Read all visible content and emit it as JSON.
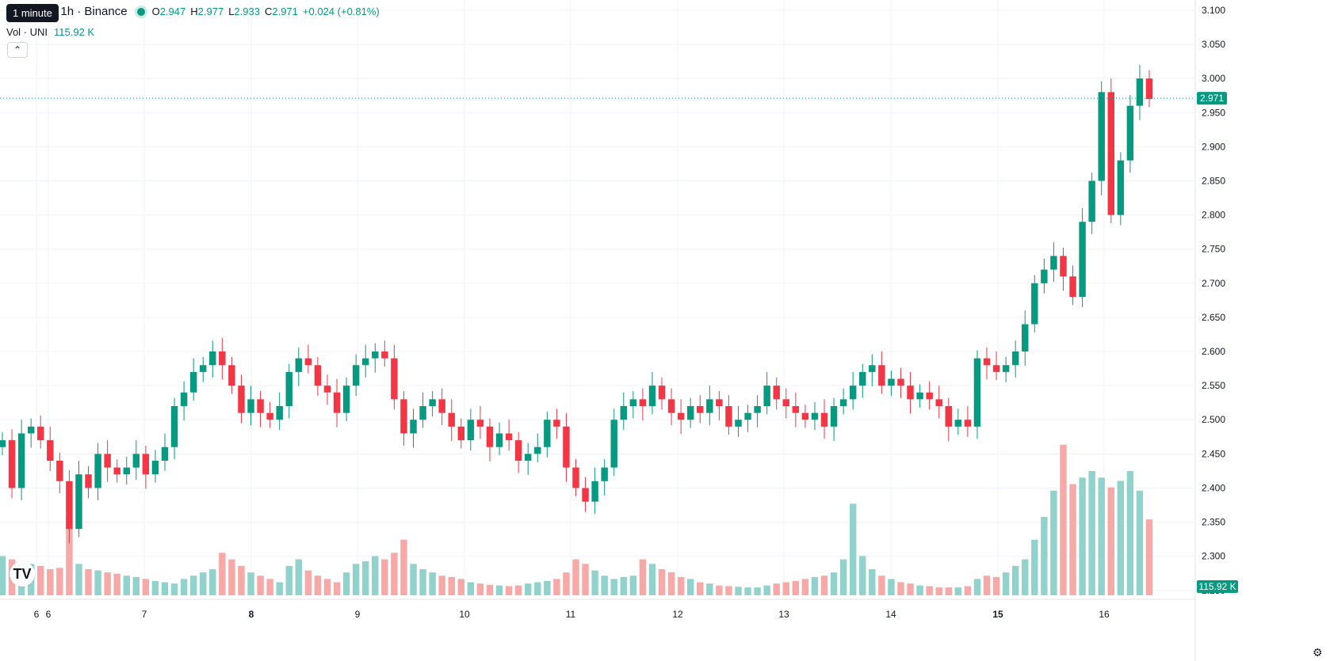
{
  "header": {
    "symbol": "etherUS · 1h · Binance",
    "tooltip": "1 minute",
    "open_label": "O",
    "open": "2.947",
    "high_label": "H",
    "high": "2.977",
    "low_label": "L",
    "low": "2.933",
    "close_label": "C",
    "close": "2.971",
    "change": "+0.024 (+0.81%)"
  },
  "volume_legend": {
    "label": "Vol · UNI",
    "value": "115.92 K"
  },
  "price_badge": "2.971",
  "volume_badge": "115.92 K",
  "logo_text": "TV",
  "icons": {
    "settings": "settings-gear-icon",
    "collapse": "chevron-up-icon",
    "logo": "tradingview-logo-icon"
  },
  "colors": {
    "up": "#089981",
    "down": "#f23645",
    "up_vol": "#92d2cc",
    "down_vol": "#f7a9a7",
    "grid": "#f0f3fa"
  },
  "chart_data": {
    "type": "candlestick",
    "timeframe": "1h",
    "price_axis": [
      "3.100",
      "3.050",
      "3.000",
      "2.950",
      "2.900",
      "2.850",
      "2.800",
      "2.750",
      "2.700",
      "2.650",
      "2.600",
      "2.550",
      "2.500",
      "2.450",
      "2.400",
      "2.350",
      "2.300",
      "2.250"
    ],
    "ylim": [
      2.237,
      3.115
    ],
    "x_labels": [
      "6",
      "6",
      "7",
      "8",
      "9",
      "10",
      "11",
      "12",
      "13",
      "14",
      "15",
      "16"
    ],
    "bold_x_labels": [
      "8",
      "15"
    ],
    "last_price": 2.971,
    "closes": [
      2.47,
      2.4,
      2.48,
      2.49,
      2.47,
      2.44,
      2.41,
      2.34,
      2.42,
      2.4,
      2.45,
      2.43,
      2.42,
      2.43,
      2.45,
      2.42,
      2.44,
      2.46,
      2.52,
      2.54,
      2.57,
      2.58,
      2.6,
      2.58,
      2.55,
      2.51,
      2.53,
      2.51,
      2.5,
      2.52,
      2.57,
      2.59,
      2.58,
      2.55,
      2.54,
      2.51,
      2.55,
      2.58,
      2.59,
      2.6,
      2.59,
      2.53,
      2.48,
      2.5,
      2.52,
      2.53,
      2.51,
      2.49,
      2.47,
      2.5,
      2.49,
      2.46,
      2.48,
      2.47,
      2.44,
      2.45,
      2.46,
      2.5,
      2.49,
      2.43,
      2.4,
      2.38,
      2.41,
      2.43,
      2.5,
      2.52,
      2.53,
      2.52,
      2.55,
      2.53,
      2.51,
      2.5,
      2.52,
      2.51,
      2.53,
      2.52,
      2.49,
      2.5,
      2.51,
      2.52,
      2.55,
      2.53,
      2.52,
      2.51,
      2.5,
      2.51,
      2.49,
      2.52,
      2.53,
      2.55,
      2.57,
      2.58,
      2.55,
      2.56,
      2.55,
      2.53,
      2.54,
      2.53,
      2.52,
      2.49,
      2.5,
      2.49,
      2.59,
      2.58,
      2.57,
      2.58,
      2.6,
      2.64,
      2.7,
      2.72,
      2.74,
      2.71,
      2.68,
      2.79,
      2.85,
      2.98,
      2.8,
      2.88,
      2.96,
      3.0,
      2.97
    ],
    "volumes_k": [
      60,
      55,
      50,
      48,
      45,
      40,
      42,
      120,
      48,
      40,
      38,
      35,
      33,
      30,
      28,
      25,
      22,
      20,
      18,
      25,
      30,
      35,
      40,
      65,
      55,
      45,
      35,
      30,
      25,
      20,
      45,
      55,
      38,
      30,
      25,
      20,
      35,
      48,
      52,
      60,
      55,
      65,
      85,
      48,
      40,
      35,
      30,
      28,
      25,
      20,
      18,
      16,
      15,
      14,
      15,
      18,
      20,
      22,
      25,
      35,
      55,
      48,
      38,
      30,
      25,
      28,
      30,
      55,
      48,
      40,
      35,
      28,
      25,
      20,
      18,
      15,
      14,
      13,
      12,
      12,
      15,
      18,
      20,
      22,
      25,
      28,
      30,
      35,
      55,
      140,
      60,
      40,
      30,
      25,
      20,
      18,
      15,
      14,
      12,
      12,
      12,
      14,
      25,
      30,
      28,
      35,
      45,
      55,
      85,
      120,
      160,
      230,
      170,
      180,
      190,
      180,
      165,
      175,
      190,
      160,
      116
    ]
  }
}
